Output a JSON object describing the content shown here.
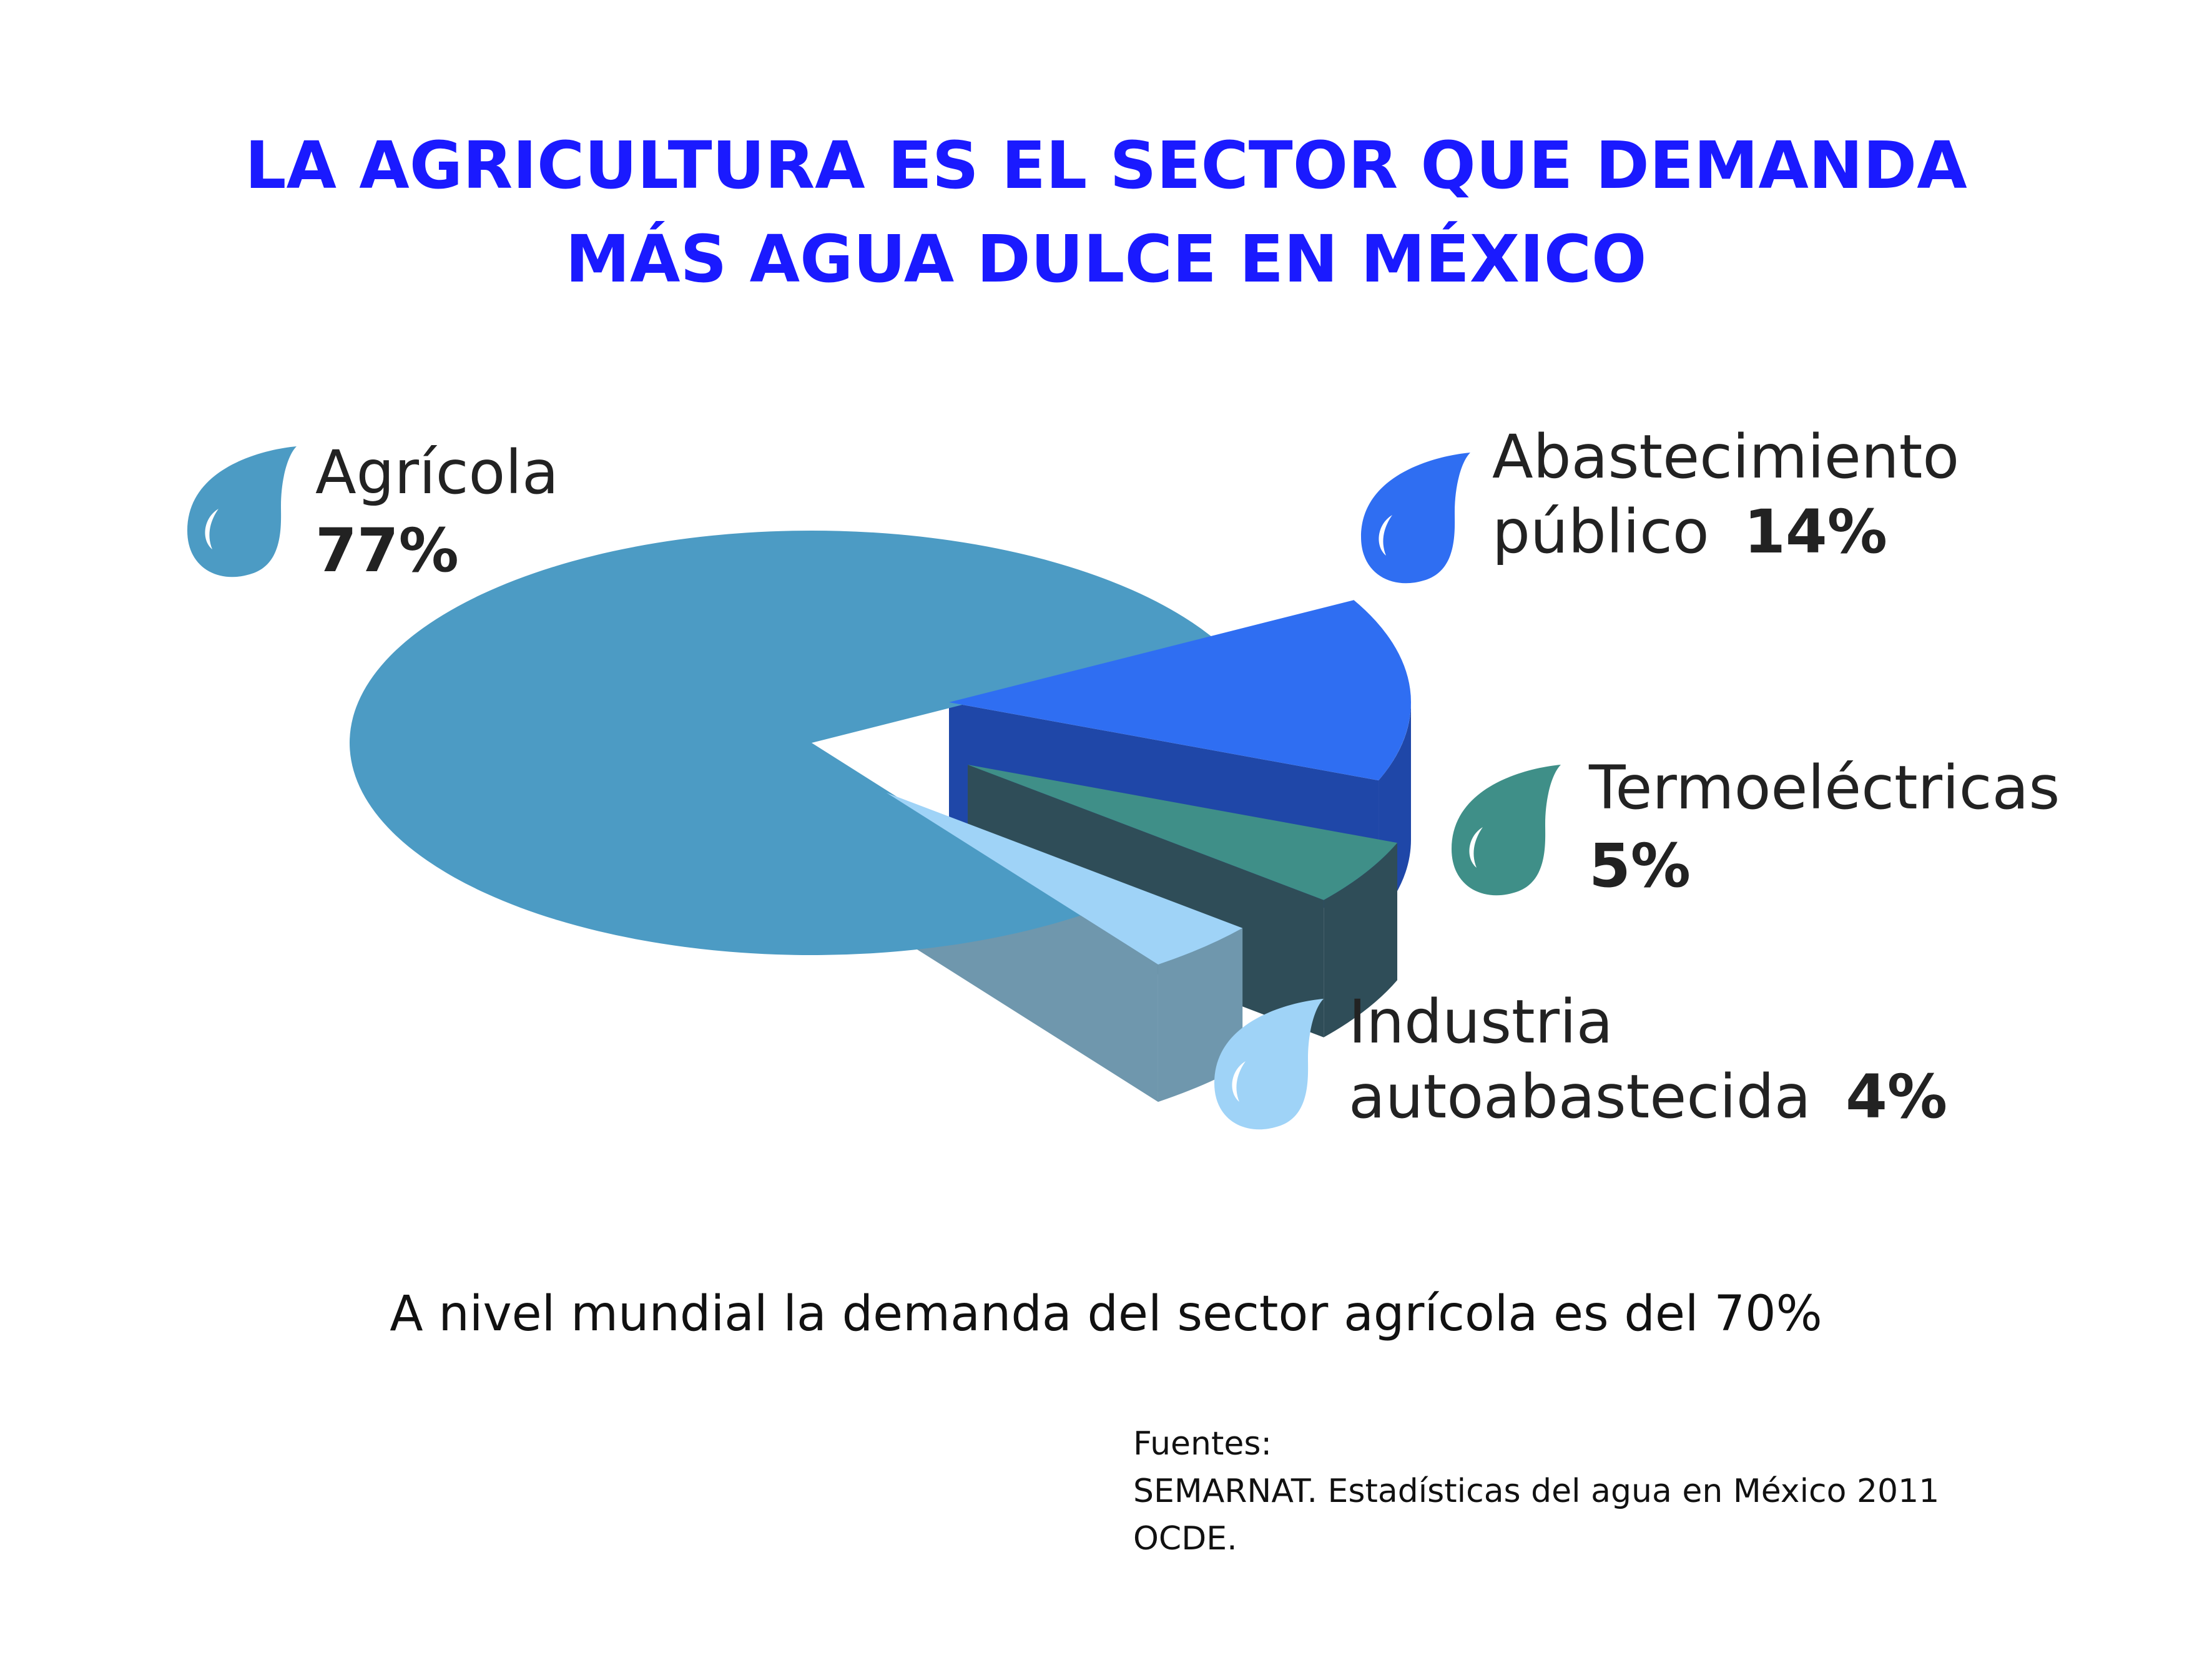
{
  "title": {
    "line1": "LA AGRICULTURA ES EL SECTOR QUE DEMANDA",
    "line2": "MÁS AGUA DULCE EN MÉXICO"
  },
  "chart_data": {
    "type": "pie",
    "style": "3d-exploded",
    "slices": [
      {
        "label_line1": "Agrícola",
        "label_line2": "",
        "value": 77,
        "pct_text": "77%",
        "color": "#4c9bc4",
        "side_color": "#2f5f86"
      },
      {
        "label_line1": "Abastecimiento",
        "label_line2": "público",
        "value": 14,
        "pct_text": "14%",
        "color": "#2f6ef2",
        "side_color": "#1f47a8"
      },
      {
        "label_line1": "Termoeléctricas",
        "label_line2": "",
        "value": 5,
        "pct_text": "5%",
        "color": "#3f8f88",
        "side_color": "#2f4d58"
      },
      {
        "label_line1": "Industria",
        "label_line2": "autoabastecida",
        "value": 4,
        "pct_text": "4%",
        "color": "#9fd3f7",
        "side_color": "#6f97ad"
      }
    ]
  },
  "caption": "A nivel mundial la demanda del sector agrícola es del 70%",
  "sources": {
    "heading": "Fuentes:",
    "line1": "SEMARNAT. Estadísticas del agua en México 2011",
    "line2": "OCDE."
  }
}
